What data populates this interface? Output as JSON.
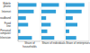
{
  "chart_data": [
    {
      "type": "bar",
      "orientation": "horizontal",
      "xlabel": "Share of households",
      "categories": [
        "Mobile phone",
        "Internet",
        "Broadband",
        "Fixed line",
        "Personal computer",
        "Television"
      ],
      "values": [
        82,
        70,
        35,
        45,
        10,
        62
      ],
      "color": "#2f9fd8",
      "xlim": [
        0,
        100
      ],
      "xticks": [
        0,
        25,
        50,
        75,
        100
      ],
      "grid": true,
      "tick_labels": "y"
    },
    {
      "type": "bar",
      "orientation": "horizontal",
      "xlabel": "Share of individuals",
      "categories": [
        "Mobile phone",
        "Internet",
        "Broadband",
        "Fixed line",
        "Personal computer",
        "Television"
      ],
      "values": [
        75,
        62,
        20,
        40,
        25,
        55
      ],
      "color": "#2f9fd8",
      "xlim": [
        0,
        100
      ],
      "xticks": [
        0,
        25,
        50,
        75,
        100
      ],
      "grid": true,
      "tick_labels": false
    },
    {
      "type": "bar",
      "orientation": "horizontal",
      "xlabel": "Share of enterprises",
      "categories": [
        "Mobile phone",
        "Internet",
        "Broadband",
        "Fixed line",
        "Personal computer",
        "Television"
      ],
      "values": [
        80,
        68,
        30,
        50,
        15,
        45
      ],
      "color": "#2f9fd8",
      "xlim": [
        0,
        100
      ],
      "xticks": [
        0,
        25,
        50,
        75,
        100
      ],
      "grid": true,
      "tick_labels": false
    }
  ]
}
